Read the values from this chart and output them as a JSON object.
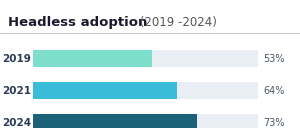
{
  "title_bold": "Headless adoption",
  "title_regular": " (2019 -2024)",
  "categories": [
    "2019",
    "2021",
    "2024"
  ],
  "values": [
    53,
    64,
    73
  ],
  "bar_colors": [
    "#7ddecb",
    "#38bcd8",
    "#1b6279"
  ],
  "bg_bar_color": "#e8eef3",
  "label_color": "#2d3a57",
  "value_color": "#4a5568",
  "background_color": "#ffffff",
  "title_color": "#1a1a2e",
  "separator_color": "#cccccc",
  "title_bold_size": 9.5,
  "title_reg_size": 8.5,
  "bar_label_size": 7.5,
  "pct_label_size": 7.0
}
